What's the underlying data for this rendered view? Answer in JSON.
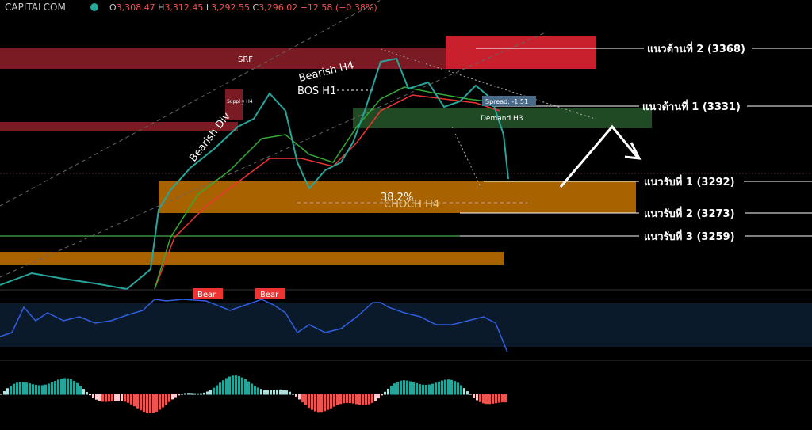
{
  "header": {
    "symbol": "CAPITALCOM",
    "ohlc": [
      {
        "key": "O",
        "value": "3,308.47"
      },
      {
        "key": "H",
        "value": "3,312.45"
      },
      {
        "key": "L",
        "value": "3,292.55"
      },
      {
        "key": "C",
        "value": "3,296.02"
      }
    ],
    "change": "−12.58 (−0.38%)"
  },
  "annotations": {
    "srf": "SRF",
    "bearish_h4": "Bearish H4",
    "bos_h1": "BOS H1",
    "bearish_div": "Bearish Div",
    "supply_h4": "Suppl y H4",
    "spread": "Spread: -1.51",
    "demand_h3": "Demand H3",
    "fib": "38.2%",
    "choch_h4": "CHOCH H4",
    "bear_labels": [
      "Bear",
      "Bear"
    ]
  },
  "levels": [
    "แนวต้านที่ 2 (3368)",
    "แนวต้านที่ 1 (3331)",
    "แนวรับที่ 1 (3292)",
    "แนวรับที่ 2 (3273)",
    "แนวรับที่ 3 (3259)"
  ]
}
